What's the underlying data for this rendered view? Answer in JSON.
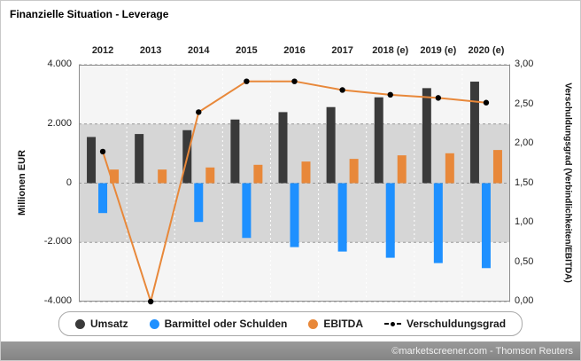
{
  "title": "Finanzielle Situation - Leverage",
  "footer": {
    "credit": "©marketscreener.com - Thomson Reuters"
  },
  "axes": {
    "left": {
      "label": "Millionen EUR",
      "ticks": [
        "4.000",
        "2.000",
        "0",
        "-2.000",
        "-4.000"
      ],
      "tick_values": [
        4000,
        2000,
        0,
        -2000,
        -4000
      ]
    },
    "right": {
      "label": "Verschuldungsgrad (Verbindlichkeiten/EBITDA)",
      "ticks": [
        "3,00",
        "2,50",
        "2,00",
        "1,50",
        "1,00",
        "0,50",
        "0,00"
      ],
      "tick_values": [
        3,
        2.5,
        2,
        1.5,
        1,
        0.5,
        0
      ]
    }
  },
  "legend": [
    {
      "label": "Umsatz",
      "color": "#3a3a3a",
      "type": "circle"
    },
    {
      "label": "Barmittel oder Schulden",
      "color": "#1e90ff",
      "type": "circle"
    },
    {
      "label": "EBITDA",
      "color": "#e8883a",
      "type": "circle"
    },
    {
      "label": "Verschuldungsgrad",
      "color": "#000000",
      "type": "line-dot"
    }
  ],
  "chart_data": {
    "type": "bar",
    "title": "Finanzielle Situation - Leverage",
    "categories": [
      "2012",
      "2013",
      "2014",
      "2015",
      "2016",
      "2017",
      "2018 (e)",
      "2019 (e)",
      "2020 (e)"
    ],
    "series": [
      {
        "name": "Umsatz",
        "type": "bar",
        "axis": "left",
        "color": "#3a3a3a",
        "values": [
          1560,
          1660,
          1790,
          2150,
          2400,
          2570,
          2900,
          3210,
          3430
        ]
      },
      {
        "name": "Barmittel oder Schulden",
        "type": "bar",
        "axis": "left",
        "color": "#1e90ff",
        "values": [
          -1010,
          0,
          -1310,
          -1850,
          -2160,
          -2310,
          -2520,
          -2700,
          -2870
        ]
      },
      {
        "name": "EBITDA",
        "type": "bar",
        "axis": "left",
        "color": "#e8883a",
        "values": [
          460,
          460,
          530,
          620,
          730,
          820,
          940,
          1010,
          1120
        ]
      },
      {
        "name": "Verschuldungsgrad",
        "type": "line",
        "axis": "right",
        "color": "#e8883a",
        "marker": "#000000",
        "values": [
          1.9,
          0,
          2.4,
          2.79,
          2.79,
          2.68,
          2.62,
          2.58,
          2.52
        ]
      }
    ],
    "ylabel_left": "Millionen EUR",
    "ylabel_right": "Verschuldungsgrad (Verbindlichkeiten/EBITDA)",
    "ylim_left": [
      -4000,
      4000
    ],
    "ylim_right": [
      0,
      3
    ],
    "plot_bands": [
      {
        "from": 2000,
        "to": 4000,
        "color": "#f5f5f5"
      },
      {
        "from": -2000,
        "to": 2000,
        "color": "#d6d6d6"
      },
      {
        "from": -4000,
        "to": -2000,
        "color": "#f5f5f5"
      }
    ],
    "grid": "dashed",
    "legend_position": "bottom"
  }
}
